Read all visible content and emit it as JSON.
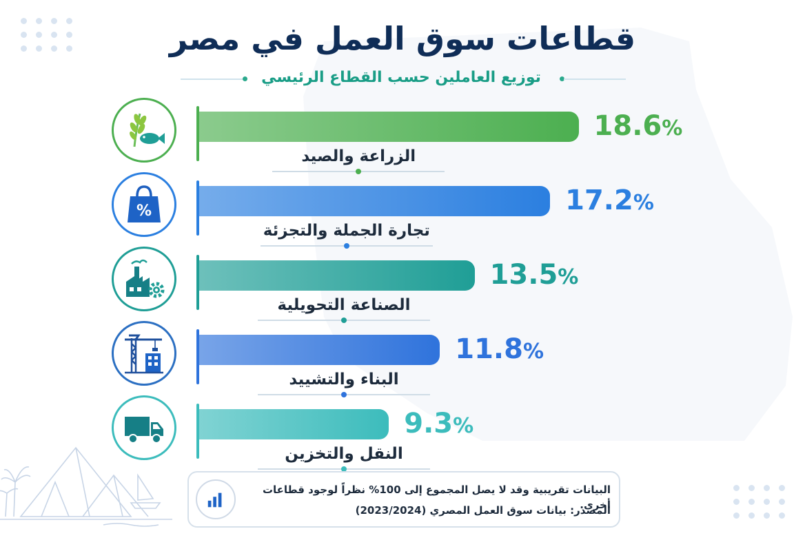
{
  "chart_data": {
    "type": "bar",
    "orientation": "horizontal",
    "title": "قطاعات سوق العمل في مصر",
    "subtitle": "توزيع العاملين حسب القطاع الرئيسي",
    "unit": "%",
    "categories": [
      "الزراعة والصيد",
      "تجارة الجملة والتجزئة",
      "الصناعة التحويلية",
      "البناء والتشييد",
      "النقل والتخزين"
    ],
    "values": [
      18.6,
      17.2,
      13.5,
      11.8,
      9.3
    ],
    "value_labels": [
      "18.6",
      "17.2",
      "13.5",
      "11.8",
      "9.3"
    ],
    "colors": [
      "#4caf50",
      "#2b7fe0",
      "#1f9e96",
      "#2f73dc",
      "#3cbcbc"
    ],
    "icons": [
      "agriculture-fish-icon",
      "shopping-bag-percent-icon",
      "factory-gear-icon",
      "crane-building-icon",
      "truck-icon"
    ],
    "xlim": [
      0,
      20
    ],
    "grid": false,
    "legend": "none"
  },
  "footer": {
    "note": "البيانات تقريبية وقد لا يصل المجموع إلى 100% نظراً لوجود قطاعات أخرى.",
    "source": "المصدر: بيانات سوق العمل المصري (2023/2024)",
    "icon": "bar-chart-icon"
  }
}
